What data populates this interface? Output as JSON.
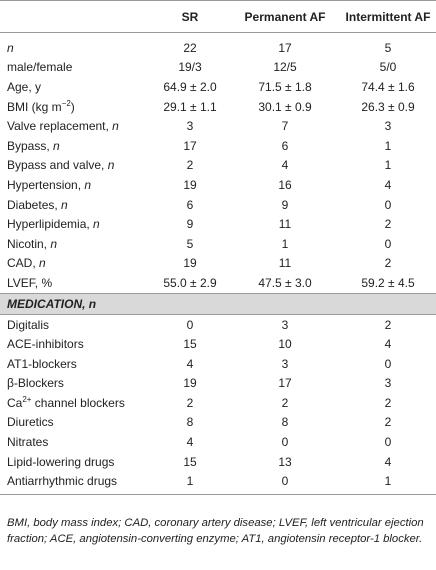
{
  "table": {
    "columns": [
      "SR",
      "Permanent AF",
      "Intermittent AF"
    ],
    "rows": [
      {
        "label": [
          {
            "text": "n",
            "italic": true
          }
        ],
        "values": [
          22,
          17,
          5
        ]
      },
      {
        "label": [
          {
            "text": "male/female"
          }
        ],
        "values": [
          "19/3",
          "12/5",
          "5/0"
        ]
      },
      {
        "label": [
          {
            "text": "Age, y"
          }
        ],
        "values": [
          "64.9 ± 2.0",
          "71.5 ± 1.8",
          "74.4 ± 1.6"
        ]
      },
      {
        "label": [
          {
            "text": "BMI (kg m"
          },
          {
            "text": "−2",
            "sup": true
          },
          {
            "text": ")"
          }
        ],
        "values": [
          "29.1 ± 1.1",
          "30.1 ± 0.9",
          "26.3 ± 0.9"
        ]
      },
      {
        "label": [
          {
            "text": "Valve replacement, "
          },
          {
            "text": "n",
            "italic": true
          }
        ],
        "values": [
          3,
          7,
          3
        ]
      },
      {
        "label": [
          {
            "text": "Bypass, "
          },
          {
            "text": "n",
            "italic": true
          }
        ],
        "values": [
          17,
          6,
          1
        ]
      },
      {
        "label": [
          {
            "text": "Bypass and valve, "
          },
          {
            "text": "n",
            "italic": true
          }
        ],
        "values": [
          2,
          4,
          1
        ]
      },
      {
        "label": [
          {
            "text": "Hypertension, "
          },
          {
            "text": "n",
            "italic": true
          }
        ],
        "values": [
          19,
          16,
          4
        ]
      },
      {
        "label": [
          {
            "text": "Diabetes, "
          },
          {
            "text": "n",
            "italic": true
          }
        ],
        "values": [
          6,
          9,
          0
        ]
      },
      {
        "label": [
          {
            "text": "Hyperlipidemia, "
          },
          {
            "text": "n",
            "italic": true
          }
        ],
        "values": [
          9,
          11,
          2
        ]
      },
      {
        "label": [
          {
            "text": "Nicotin, "
          },
          {
            "text": "n",
            "italic": true
          }
        ],
        "values": [
          5,
          1,
          0
        ]
      },
      {
        "label": [
          {
            "text": "CAD, "
          },
          {
            "text": "n",
            "italic": true
          }
        ],
        "values": [
          19,
          11,
          2
        ]
      },
      {
        "label": [
          {
            "text": "LVEF, %"
          }
        ],
        "values": [
          "55.0 ± 2.9",
          "47.5 ± 3.0",
          "59.2 ± 4.5"
        ]
      }
    ],
    "section": [
      {
        "text": "MEDICATION, "
      },
      {
        "text": "n"
      }
    ],
    "medication_rows": [
      {
        "label": [
          {
            "text": "Digitalis"
          }
        ],
        "values": [
          0,
          3,
          2
        ]
      },
      {
        "label": [
          {
            "text": "ACE-inhibitors"
          }
        ],
        "values": [
          15,
          10,
          4
        ]
      },
      {
        "label": [
          {
            "text": "AT1-blockers"
          }
        ],
        "values": [
          4,
          3,
          0
        ]
      },
      {
        "label": [
          {
            "text": "β-Blockers"
          }
        ],
        "values": [
          19,
          17,
          3
        ]
      },
      {
        "label": [
          {
            "text": "Ca"
          },
          {
            "text": "2+",
            "sup": true
          },
          {
            "text": " channel blockers"
          }
        ],
        "values": [
          2,
          2,
          2
        ]
      },
      {
        "label": [
          {
            "text": "Diuretics"
          }
        ],
        "values": [
          8,
          8,
          2
        ]
      },
      {
        "label": [
          {
            "text": "Nitrates"
          }
        ],
        "values": [
          4,
          0,
          0
        ]
      },
      {
        "label": [
          {
            "text": "Lipid-lowering drugs"
          }
        ],
        "values": [
          15,
          13,
          4
        ]
      },
      {
        "label": [
          {
            "text": "Antiarrhythmic drugs"
          }
        ],
        "values": [
          1,
          0,
          1
        ]
      }
    ],
    "footnote": "BMI, body mass index; CAD, coronary artery disease; LVEF, left ventricular ejection fraction; ACE, angiotensin-converting enzyme; AT1, angiotensin receptor-1 blocker."
  }
}
